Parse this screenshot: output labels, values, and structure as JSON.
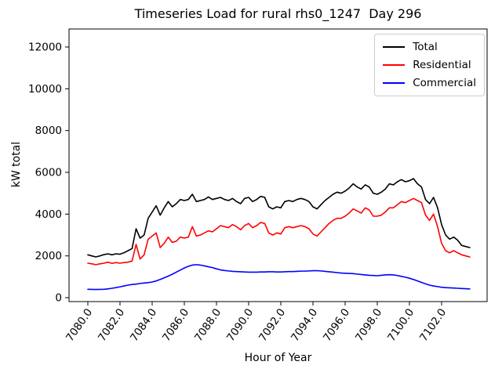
{
  "figure": {
    "title": "Timeseries Load for rural rhs0_1247  Day 296",
    "xlabel": "Hour of Year",
    "ylabel": "kW total"
  },
  "legend": {
    "position": "upper right",
    "items": [
      {
        "label": "Total",
        "color": "#000000"
      },
      {
        "label": "Residential",
        "color": "#ff0000"
      },
      {
        "label": "Commercial",
        "color": "#0000ff"
      }
    ]
  },
  "chart_data": {
    "type": "line",
    "title": "Timeseries Load for rural rhs0_1247  Day 296",
    "xlabel": "Hour of Year",
    "ylabel": "kW total",
    "grid": false,
    "legend_position": "upper right",
    "xlim": [
      7078.83,
      7104.83
    ],
    "ylim": [
      -187.5,
      12862.5
    ],
    "xtick_labels": [
      "7080.0",
      "7082.0",
      "7084.0",
      "7086.0",
      "7088.0",
      "7090.0",
      "7092.0",
      "7094.0",
      "7096.0",
      "7098.0",
      "7100.0",
      "7102.0"
    ],
    "xtick_values": [
      7080,
      7082,
      7084,
      7086,
      7088,
      7090,
      7092,
      7094,
      7096,
      7098,
      7100,
      7102
    ],
    "ytick_values": [
      0,
      2000,
      4000,
      6000,
      8000,
      10000,
      12000
    ],
    "x_start": 7080.0,
    "x_step": 0.25,
    "x": [
      7080.0,
      7080.25,
      7080.5,
      7080.75,
      7081.0,
      7081.25,
      7081.5,
      7081.75,
      7082.0,
      7082.25,
      7082.5,
      7082.75,
      7083.0,
      7083.25,
      7083.5,
      7083.75,
      7084.0,
      7084.25,
      7084.5,
      7084.75,
      7085.0,
      7085.25,
      7085.5,
      7085.75,
      7086.0,
      7086.25,
      7086.5,
      7086.75,
      7087.0,
      7087.25,
      7087.5,
      7087.75,
      7088.0,
      7088.25,
      7088.5,
      7088.75,
      7089.0,
      7089.25,
      7089.5,
      7089.75,
      7090.0,
      7090.25,
      7090.5,
      7090.75,
      7091.0,
      7091.25,
      7091.5,
      7091.75,
      7092.0,
      7092.25,
      7092.5,
      7092.75,
      7093.0,
      7093.25,
      7093.5,
      7093.75,
      7094.0,
      7094.25,
      7094.5,
      7094.75,
      7095.0,
      7095.25,
      7095.5,
      7095.75,
      7096.0,
      7096.25,
      7096.5,
      7096.75,
      7097.0,
      7097.25,
      7097.5,
      7097.75,
      7098.0,
      7098.25,
      7098.5,
      7098.75,
      7099.0,
      7099.25,
      7099.5,
      7099.75,
      7100.0,
      7100.25,
      7100.5,
      7100.75,
      7101.0,
      7101.25,
      7101.5,
      7101.75,
      7102.0,
      7102.25,
      7102.5,
      7102.75,
      7103.0,
      7103.25,
      7103.5,
      7103.75
    ],
    "series": [
      {
        "name": "Total",
        "color": "#000000",
        "values": [
          2050,
          2000,
          1950,
          2000,
          2060,
          2100,
          2050,
          2100,
          2080,
          2150,
          2250,
          2350,
          3300,
          2850,
          3000,
          3800,
          4100,
          4400,
          3950,
          4300,
          4600,
          4350,
          4500,
          4700,
          4650,
          4700,
          4950,
          4600,
          4650,
          4700,
          4820,
          4700,
          4750,
          4800,
          4700,
          4650,
          4750,
          4600,
          4500,
          4750,
          4800,
          4600,
          4700,
          4850,
          4800,
          4350,
          4250,
          4350,
          4300,
          4600,
          4650,
          4600,
          4700,
          4750,
          4700,
          4600,
          4350,
          4250,
          4450,
          4650,
          4800,
          4950,
          5050,
          5000,
          5100,
          5250,
          5450,
          5300,
          5200,
          5400,
          5300,
          5000,
          4950,
          5050,
          5200,
          5450,
          5400,
          5550,
          5650,
          5550,
          5600,
          5700,
          5450,
          5300,
          4700,
          4500,
          4800,
          4300,
          3500,
          3000,
          2800,
          2900,
          2750,
          2500,
          2450,
          2400
        ]
      },
      {
        "name": "Residential",
        "color": "#ff0000",
        "values": [
          1650,
          1620,
          1580,
          1620,
          1650,
          1700,
          1640,
          1680,
          1650,
          1680,
          1700,
          1750,
          2550,
          1850,
          2050,
          2800,
          2950,
          3100,
          2400,
          2600,
          2900,
          2650,
          2700,
          2900,
          2850,
          2900,
          3400,
          2950,
          3000,
          3100,
          3200,
          3150,
          3300,
          3450,
          3400,
          3350,
          3500,
          3400,
          3250,
          3450,
          3550,
          3350,
          3450,
          3600,
          3550,
          3100,
          3000,
          3100,
          3050,
          3350,
          3400,
          3350,
          3400,
          3450,
          3400,
          3300,
          3050,
          2950,
          3150,
          3350,
          3550,
          3700,
          3800,
          3800,
          3900,
          4050,
          4250,
          4150,
          4050,
          4300,
          4200,
          3900,
          3900,
          3950,
          4100,
          4300,
          4300,
          4450,
          4600,
          4550,
          4650,
          4750,
          4650,
          4550,
          3950,
          3700,
          4000,
          3400,
          2600,
          2250,
          2150,
          2250,
          2150,
          2050,
          2000,
          1950
        ]
      },
      {
        "name": "Commercial",
        "color": "#0000ff",
        "values": [
          400,
          395,
          390,
          395,
          400,
          420,
          450,
          480,
          520,
          560,
          600,
          630,
          650,
          680,
          700,
          720,
          750,
          800,
          870,
          950,
          1030,
          1120,
          1220,
          1320,
          1420,
          1500,
          1560,
          1580,
          1560,
          1520,
          1480,
          1440,
          1380,
          1330,
          1300,
          1280,
          1260,
          1250,
          1240,
          1230,
          1220,
          1220,
          1220,
          1230,
          1230,
          1240,
          1240,
          1230,
          1230,
          1240,
          1250,
          1250,
          1260,
          1270,
          1270,
          1280,
          1290,
          1290,
          1280,
          1260,
          1240,
          1220,
          1200,
          1180,
          1170,
          1160,
          1150,
          1130,
          1110,
          1090,
          1070,
          1060,
          1050,
          1070,
          1090,
          1100,
          1090,
          1060,
          1020,
          980,
          930,
          870,
          800,
          730,
          660,
          600,
          560,
          530,
          500,
          480,
          470,
          460,
          450,
          440,
          430,
          420
        ]
      }
    ]
  }
}
